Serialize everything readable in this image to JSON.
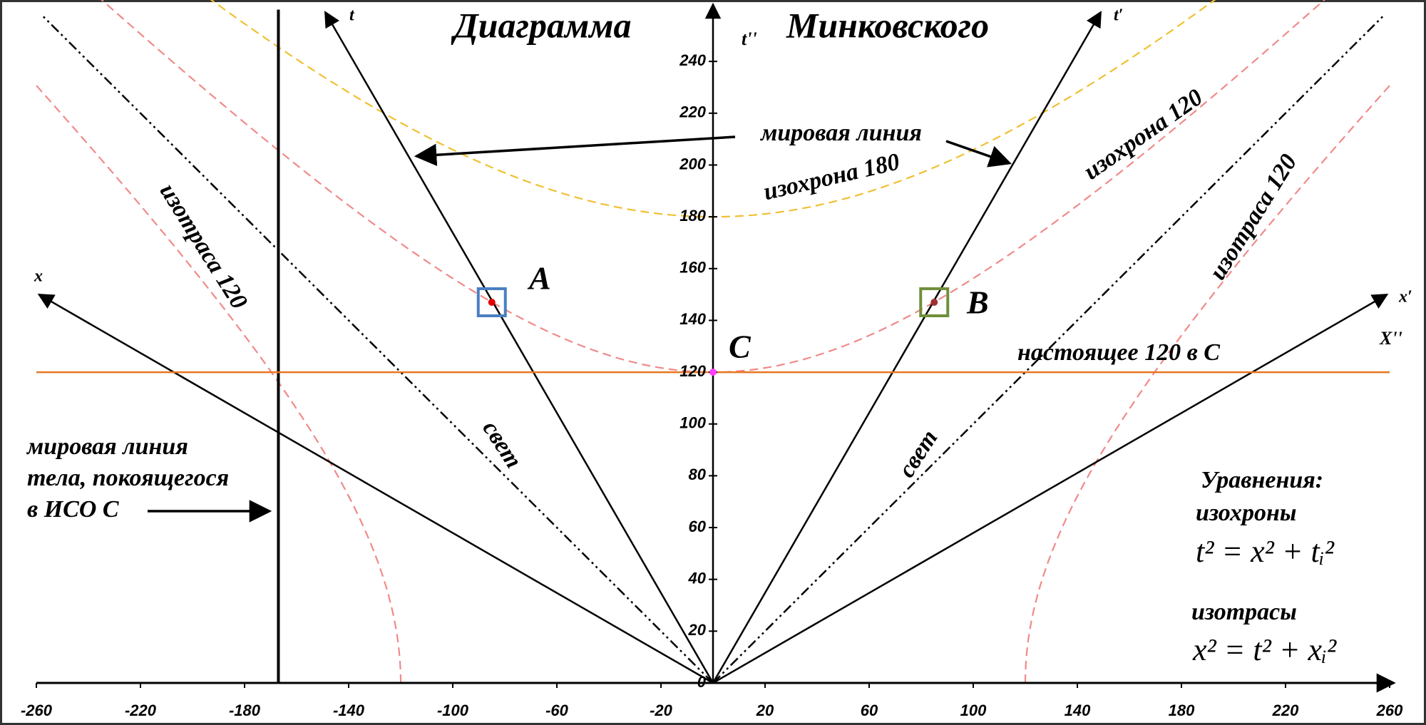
{
  "chart_data": {
    "type": "minkowski",
    "title_left": "Диаграмма",
    "title_right": "Минковского",
    "y_axis_label": "t''",
    "x_axis_label": "X''",
    "xlim": [
      -260,
      260
    ],
    "ylim": [
      0,
      260
    ],
    "xticks": [
      -260,
      -220,
      -180,
      -140,
      -100,
      -60,
      -20,
      20,
      60,
      100,
      140,
      180,
      220,
      260
    ],
    "yticks": [
      0,
      20,
      40,
      60,
      80,
      100,
      120,
      140,
      160,
      180,
      200,
      220,
      240
    ],
    "grid": true,
    "grid_color": "#b4c7e7",
    "lines": [
      {
        "name": "t",
        "color": "#000000",
        "style": "solid",
        "arrow": true,
        "x": [
          0,
          -149
        ],
        "y": [
          0,
          259
        ]
      },
      {
        "name": "t′",
        "color": "#000000",
        "style": "solid",
        "arrow": true,
        "x": [
          0,
          149
        ],
        "y": [
          0,
          259
        ]
      },
      {
        "name": "x",
        "color": "#000000",
        "style": "solid",
        "arrow": true,
        "x": [
          0,
          -259
        ],
        "y": [
          0,
          150
        ]
      },
      {
        "name": "x′",
        "color": "#000000",
        "style": "solid",
        "arrow": true,
        "x": [
          0,
          259
        ],
        "y": [
          0,
          150
        ]
      },
      {
        "label": "свет",
        "color": "#000000",
        "style": "dashdot",
        "arrow": false,
        "x": [
          0,
          -258
        ],
        "y": [
          0,
          258
        ]
      },
      {
        "label": "свет",
        "color": "#000000",
        "style": "dashdot",
        "arrow": false,
        "x": [
          0,
          258
        ],
        "y": [
          0,
          258
        ]
      },
      {
        "color": "#000000",
        "style": "thick",
        "arrow": false,
        "x": [
          -167,
          -167
        ],
        "y": [
          0,
          260
        ]
      },
      {
        "label": "настоящее 120 в С",
        "color": "#e87722",
        "style": "solid",
        "arrow": false,
        "x": [
          -260,
          260
        ],
        "y": [
          120,
          120
        ]
      }
    ],
    "hyperbolas": [
      {
        "kind": "isochrone",
        "t0": 120,
        "color": "#f08a8a",
        "label": "изохрона 120"
      },
      {
        "kind": "isochrone",
        "t0": 180,
        "color": "#f0c030",
        "label": "изохрона 180"
      },
      {
        "kind": "isotrace",
        "x0": -120,
        "color": "#f08a8a",
        "label": "изотраса 120"
      },
      {
        "kind": "isotrace",
        "x0": 120,
        "color": "#f08a8a",
        "label": "изотраса 120"
      }
    ],
    "points": [
      {
        "name": "A",
        "x": -85,
        "y": 147,
        "color": "#e00000",
        "box": "#4a7fc1"
      },
      {
        "name": "B",
        "x": 85,
        "y": 147,
        "color": "#a03030",
        "box": "#6f8f3a"
      },
      {
        "name": "C",
        "x": 0,
        "y": 120,
        "color": "#ff40ff"
      }
    ],
    "annotations": {
      "world_line": "мировая линия",
      "rest_body": [
        "мировая линия",
        "тела, покоящегося",
        "в ИСО С"
      ],
      "equations_title": "Уравнения:",
      "isochrones_label": "изохроны",
      "isochrones_eq": "t² = x² + tᵢ²",
      "isotraces_label": "изотрасы",
      "isotraces_eq": "x² = t² + xᵢ²"
    }
  }
}
